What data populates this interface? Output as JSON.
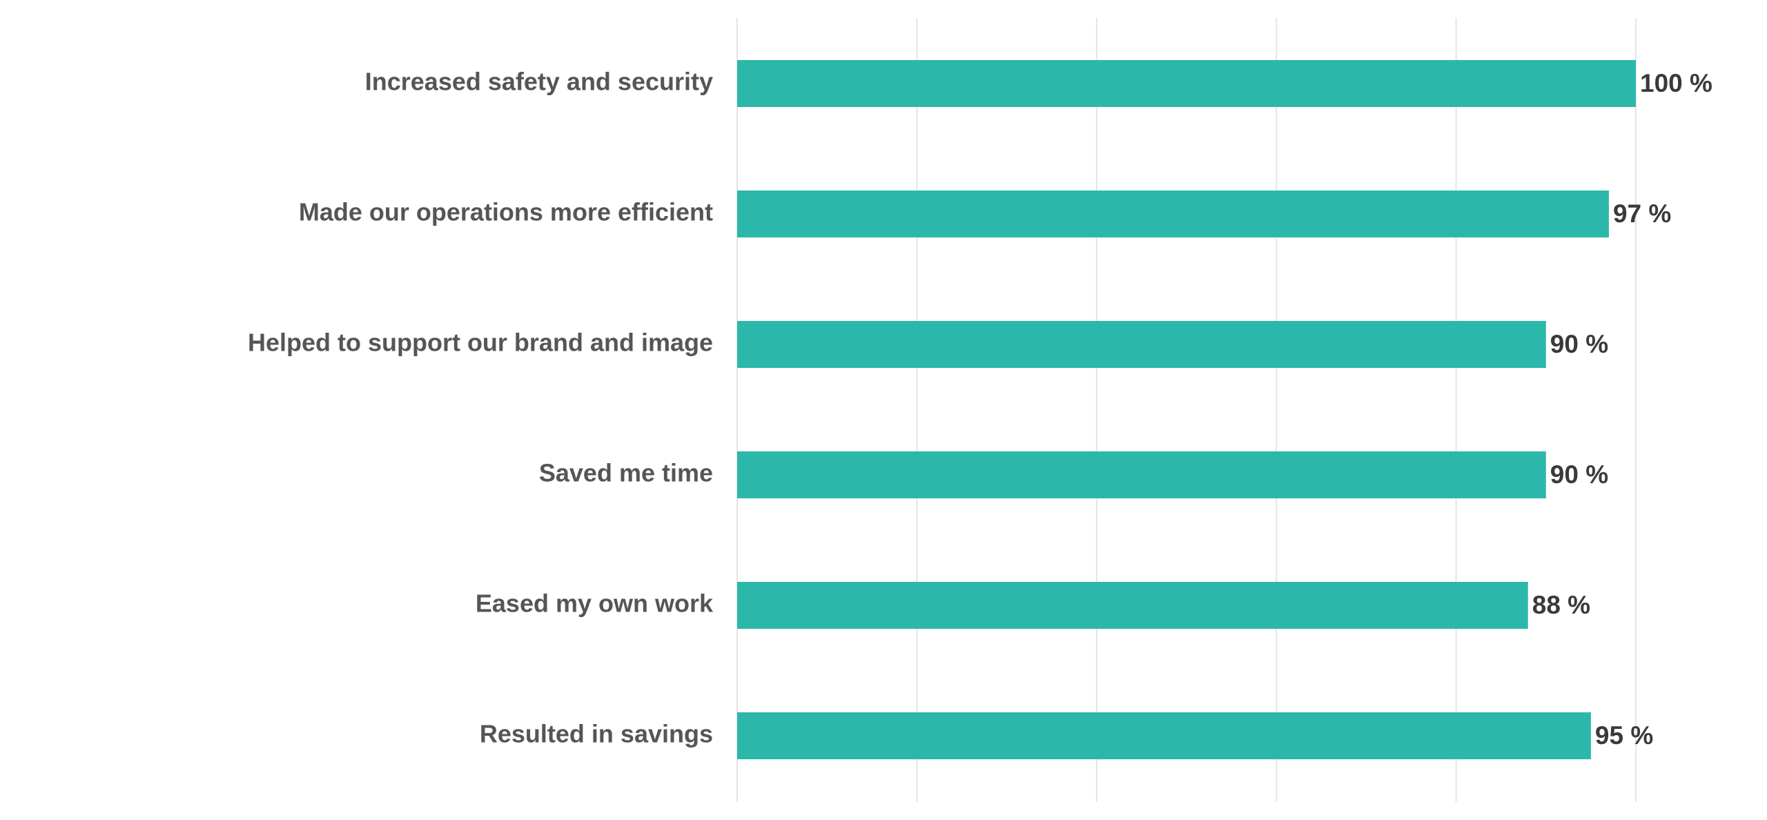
{
  "chart_data": {
    "type": "bar",
    "orientation": "horizontal",
    "categories": [
      "Increased safety and security",
      "Made our operations more efficient",
      "Helped to support our brand and image",
      "Saved me time",
      "Eased my own work",
      "Resulted in savings"
    ],
    "values": [
      100,
      97,
      90,
      90,
      88,
      95
    ],
    "value_labels": [
      "100 %",
      "97 %",
      "90 %",
      "90 %",
      "88 %",
      "95 %"
    ],
    "title": "",
    "xlabel": "",
    "ylabel": "",
    "xlim": [
      0,
      100
    ],
    "grid": true,
    "legend": "none",
    "bar_color": "#2bb8aa",
    "grid_color": "#e4e4e4",
    "category_label_color": "#555555",
    "value_label_color": "#3a3a3a"
  }
}
